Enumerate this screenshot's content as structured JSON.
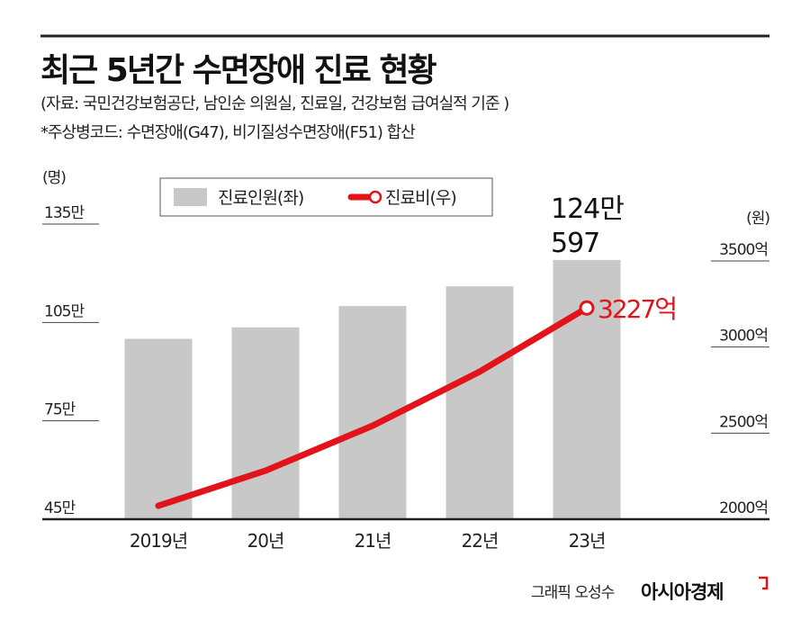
{
  "header": {
    "title": "최근 5년간 수면장애 진료 현황",
    "source": "(자료: 국민건강보험공단, 남인순 의원실, 진료일, 건강보험 급여실적 기준 )",
    "note": "*주상병코드: 수면장애(G47), 비기질성수면장애(F51) 합산"
  },
  "chart_data": {
    "type": "bar+line",
    "categories": [
      "2019년",
      "20년",
      "21년",
      "22년",
      "23년"
    ],
    "left_axis": {
      "unit": "(명)",
      "ticks": [
        "45만",
        "75만",
        "105만",
        "135만"
      ],
      "tick_values": [
        45,
        75,
        105,
        135
      ],
      "ylim": [
        45,
        135
      ]
    },
    "right_axis": {
      "unit": "(원)",
      "ticks": [
        "2000억",
        "2500억",
        "3000억",
        "3500억"
      ],
      "tick_values": [
        2000,
        2500,
        3000,
        3500
      ],
      "ylim": [
        2000,
        3500
      ]
    },
    "series": [
      {
        "name": "진료인원(좌)",
        "type": "bar",
        "axis": "left",
        "color": "#c8c8c8",
        "values": [
          100,
          103.5,
          110,
          116,
          124.06
        ]
      },
      {
        "name": "진료비(우)",
        "type": "line",
        "axis": "right",
        "color": "#e3131b",
        "values": [
          2078,
          2282,
          2543,
          2857,
          3227
        ]
      }
    ],
    "annotations": {
      "bar_last_line1": "124만",
      "bar_last_line2": "597",
      "line_last": "3227억"
    },
    "legend": "top-center",
    "grid": false
  },
  "footer": {
    "credit": "그래픽 오성수",
    "brand": "아시아경제"
  }
}
